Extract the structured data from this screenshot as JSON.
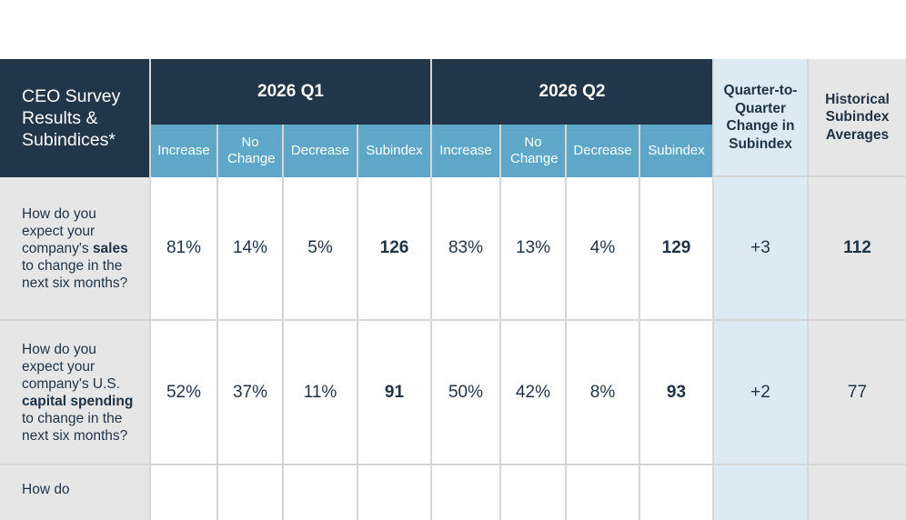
{
  "header": {
    "title": "CEO Survey Results & Subindices*",
    "q1_label": "2026 Q1",
    "q2_label": "2026 Q2",
    "sub_columns": [
      "Increase",
      "No Change",
      "Decrease",
      "Subindex"
    ],
    "change_label": "Quarter-to-Quarter Change in Subindex",
    "historical_label": "Historical Subindex Averages"
  },
  "rows": [
    {
      "question_prefix": "How do you expect your company's",
      "question_bold": "sales",
      "question_suffix": "to change in the next six months?",
      "q1": {
        "increase": "81%",
        "no_change": "14%",
        "decrease": "5%",
        "subindex": "126"
      },
      "q2": {
        "increase": "83%",
        "no_change": "13%",
        "decrease": "4%",
        "subindex": "129"
      },
      "change": "+3",
      "historical": "112"
    },
    {
      "question_prefix": "How do you expect your company's U.S.",
      "question_bold": "capital spending",
      "question_suffix": "to change in the next six months?",
      "q1": {
        "increase": "52%",
        "no_change": "37%",
        "decrease": "11%",
        "subindex": "91"
      },
      "q2": {
        "increase": "50%",
        "no_change": "42%",
        "decrease": "8%",
        "subindex": "93"
      },
      "change": "+2",
      "historical": "77"
    },
    {
      "question_prefix": "How do",
      "question_bold": "",
      "question_suffix": "",
      "q1": {
        "increase": "",
        "no_change": "",
        "decrease": "",
        "subindex": ""
      },
      "q2": {
        "increase": "",
        "no_change": "",
        "decrease": "",
        "subindex": ""
      },
      "change": "",
      "historical": ""
    }
  ]
}
